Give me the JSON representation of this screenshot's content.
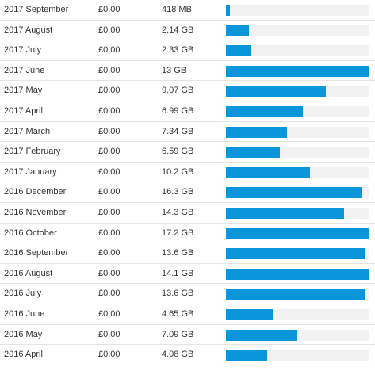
{
  "usage": {
    "bar_color": "#0b96dc",
    "track_color": "#f2f2f2",
    "rows": [
      {
        "month": "2017 September",
        "cost": "£0.00",
        "size": "418 MB",
        "fill": 0.03
      },
      {
        "month": "2017 August",
        "cost": "£0.00",
        "size": "2.14 GB",
        "fill": 0.16
      },
      {
        "month": "2017 July",
        "cost": "£0.00",
        "size": "2.33 GB",
        "fill": 0.18
      },
      {
        "month": "2017 June",
        "cost": "£0.00",
        "size": "13 GB",
        "fill": 1.0
      },
      {
        "month": "2017 May",
        "cost": "£0.00",
        "size": "9.07 GB",
        "fill": 0.7
      },
      {
        "month": "2017 April",
        "cost": "£0.00",
        "size": "6.99 GB",
        "fill": 0.54
      },
      {
        "month": "2017 March",
        "cost": "£0.00",
        "size": "7.34 GB",
        "fill": 0.43
      },
      {
        "month": "2017 February",
        "cost": "£0.00",
        "size": "6.59 GB",
        "fill": 0.38
      },
      {
        "month": "2017 January",
        "cost": "£0.00",
        "size": "10.2 GB",
        "fill": 0.59
      },
      {
        "month": "2016 December",
        "cost": "£0.00",
        "size": "16.3 GB",
        "fill": 0.95
      },
      {
        "month": "2016 November",
        "cost": "£0.00",
        "size": "14.3 GB",
        "fill": 0.83
      },
      {
        "month": "2016 October",
        "cost": "£0.00",
        "size": "17.2 GB",
        "fill": 1.0
      },
      {
        "month": "2016 September",
        "cost": "£0.00",
        "size": "13.6 GB",
        "fill": 0.97
      },
      {
        "month": "2016 August",
        "cost": "£0.00",
        "size": "14.1 GB",
        "fill": 1.0
      },
      {
        "month": "2016 July",
        "cost": "£0.00",
        "size": "13.6 GB",
        "fill": 0.97
      },
      {
        "month": "2016 June",
        "cost": "£0.00",
        "size": "4.65 GB",
        "fill": 0.33
      },
      {
        "month": "2016 May",
        "cost": "£0.00",
        "size": "7.09 GB",
        "fill": 0.5
      },
      {
        "month": "2016 April",
        "cost": "£0.00",
        "size": "4.08 GB",
        "fill": 0.29
      }
    ]
  }
}
